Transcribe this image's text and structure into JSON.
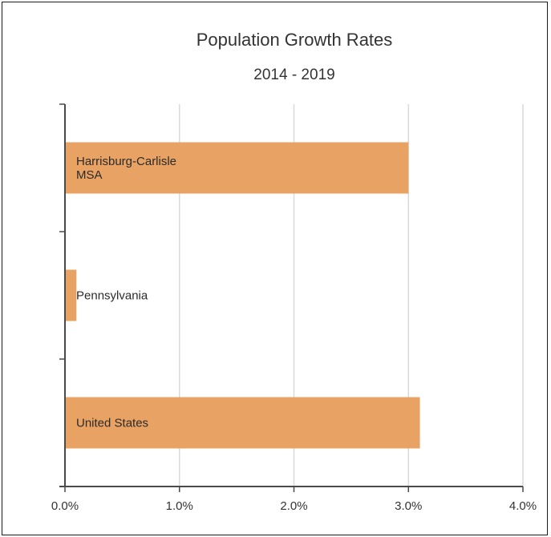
{
  "chart_data": {
    "type": "bar",
    "orientation": "horizontal",
    "title": "Population Growth Rates",
    "subtitle": "2014 - 2019",
    "categories": [
      [
        "Harrisburg-Carlisle",
        "MSA"
      ],
      [
        "Pennsylvania"
      ],
      [
        "United States"
      ]
    ],
    "values": [
      3.0,
      0.1,
      3.1
    ],
    "xlim": [
      0,
      4
    ],
    "xticks": [
      "0.0%",
      "1.0%",
      "2.0%",
      "3.0%",
      "4.0%"
    ],
    "x_tick_values": [
      0,
      1,
      2,
      3,
      4
    ],
    "grid": true,
    "legend": "none",
    "colors": {
      "bar": "#E8A263",
      "grid": "#d9d9d9",
      "axis": "#4a4a4a"
    }
  }
}
